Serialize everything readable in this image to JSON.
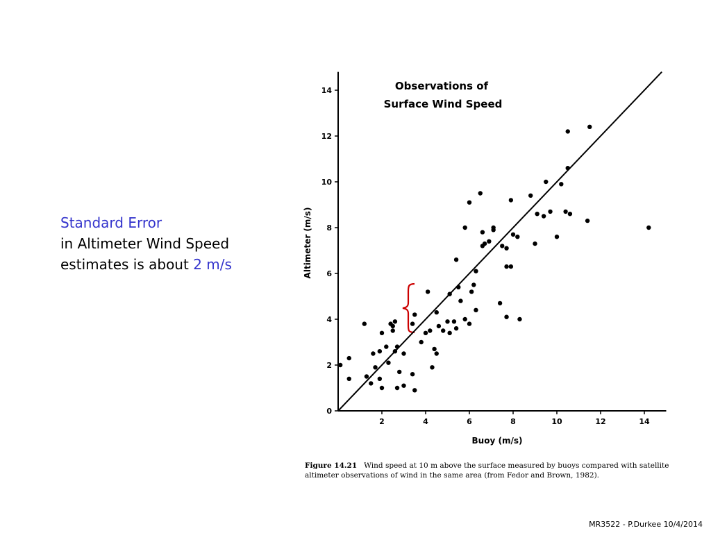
{
  "slide": {
    "heading": "Standard Error",
    "line2": "in Altimeter Wind Speed",
    "line3_prefix": "estimates is about ",
    "line3_value": "2 m/s",
    "accent_color": "#3333cc",
    "bracket_color": "#cc0000"
  },
  "figure": {
    "caption_number": "Figure 14.21",
    "caption_text": "Wind speed at 10 m above the surface measured by buoys compared with satellite altimeter observations of wind in the same area (from Fedor and Brown, 1982)."
  },
  "footer": {
    "text": "MR3522 - P.Durkee 10/4/2014"
  },
  "chart_data": {
    "type": "scatter",
    "title": "Observations of",
    "subtitle": "Surface Wind Speed",
    "xlabel": "Buoy  (m/s)",
    "ylabel": "Altimeter  (m/s)",
    "xlim": [
      0,
      15
    ],
    "ylim": [
      0,
      14.8
    ],
    "xticks": [
      2,
      4,
      6,
      8,
      10,
      12,
      14
    ],
    "yticks": [
      0,
      2,
      4,
      6,
      8,
      10,
      12,
      14
    ],
    "grid": false,
    "reference_line": {
      "type": "one-to-one",
      "from": [
        0,
        0
      ],
      "to": [
        14.8,
        14.8
      ]
    },
    "series": [
      {
        "points": [
          [
            0.1,
            2.0
          ],
          [
            0.5,
            2.3
          ],
          [
            0.5,
            1.4
          ],
          [
            1.2,
            3.8
          ],
          [
            1.3,
            1.5
          ],
          [
            1.5,
            1.2
          ],
          [
            1.6,
            2.5
          ],
          [
            1.7,
            1.9
          ],
          [
            1.9,
            2.6
          ],
          [
            1.9,
            1.4
          ],
          [
            2.0,
            3.4
          ],
          [
            2.0,
            1.0
          ],
          [
            2.2,
            2.8
          ],
          [
            2.3,
            2.1
          ],
          [
            2.4,
            3.8
          ],
          [
            2.5,
            3.5
          ],
          [
            2.5,
            3.7
          ],
          [
            2.6,
            2.6
          ],
          [
            2.6,
            3.9
          ],
          [
            2.7,
            2.8
          ],
          [
            2.7,
            1.0
          ],
          [
            2.8,
            1.7
          ],
          [
            3.0,
            1.1
          ],
          [
            3.0,
            2.5
          ],
          [
            3.4,
            1.6
          ],
          [
            3.4,
            3.8
          ],
          [
            3.5,
            4.2
          ],
          [
            3.5,
            0.9
          ],
          [
            3.8,
            3.0
          ],
          [
            4.0,
            3.4
          ],
          [
            4.1,
            5.2
          ],
          [
            4.2,
            3.5
          ],
          [
            4.3,
            1.9
          ],
          [
            4.4,
            2.7
          ],
          [
            4.5,
            4.3
          ],
          [
            4.5,
            2.5
          ],
          [
            4.6,
            3.7
          ],
          [
            4.8,
            3.5
          ],
          [
            5.0,
            3.9
          ],
          [
            5.1,
            3.4
          ],
          [
            5.1,
            5.1
          ],
          [
            5.3,
            3.9
          ],
          [
            5.4,
            3.6
          ],
          [
            5.4,
            6.6
          ],
          [
            5.5,
            5.4
          ],
          [
            5.6,
            4.8
          ],
          [
            5.8,
            4.0
          ],
          [
            5.8,
            8.0
          ],
          [
            6.0,
            9.1
          ],
          [
            6.0,
            3.8
          ],
          [
            6.1,
            5.2
          ],
          [
            6.2,
            5.5
          ],
          [
            6.3,
            4.4
          ],
          [
            6.3,
            6.1
          ],
          [
            6.5,
            9.5
          ],
          [
            6.6,
            7.8
          ],
          [
            6.6,
            7.2
          ],
          [
            6.7,
            7.3
          ],
          [
            6.9,
            7.4
          ],
          [
            7.1,
            7.9
          ],
          [
            7.1,
            8.0
          ],
          [
            7.4,
            4.7
          ],
          [
            7.5,
            7.2
          ],
          [
            7.7,
            4.1
          ],
          [
            7.7,
            7.1
          ],
          [
            7.7,
            6.3
          ],
          [
            7.9,
            9.2
          ],
          [
            7.9,
            6.3
          ],
          [
            8.0,
            7.7
          ],
          [
            8.2,
            7.6
          ],
          [
            8.3,
            4.0
          ],
          [
            8.8,
            9.4
          ],
          [
            9.0,
            7.3
          ],
          [
            9.1,
            8.6
          ],
          [
            9.4,
            8.5
          ],
          [
            9.5,
            10.0
          ],
          [
            9.7,
            8.7
          ],
          [
            10.0,
            7.6
          ],
          [
            10.2,
            9.9
          ],
          [
            10.4,
            8.7
          ],
          [
            10.5,
            12.2
          ],
          [
            10.5,
            10.6
          ],
          [
            10.6,
            8.6
          ],
          [
            11.4,
            8.3
          ],
          [
            11.5,
            12.4
          ],
          [
            14.2,
            8.0
          ]
        ]
      }
    ]
  }
}
